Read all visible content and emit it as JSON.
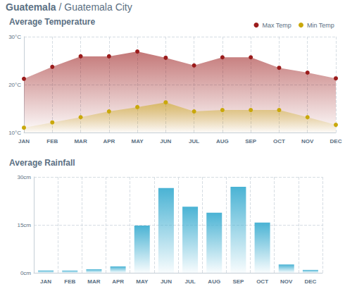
{
  "header": {
    "country": "Guatemala",
    "separator": "/",
    "city": "Guatemala City"
  },
  "chart_data": [
    {
      "type": "line",
      "title": "Average Temperature",
      "categories": [
        "JAN",
        "FEB",
        "MAR",
        "APR",
        "MAY",
        "JUN",
        "JUL",
        "AUG",
        "SEP",
        "OCT",
        "NOV",
        "DEC"
      ],
      "series": [
        {
          "name": "Max Temp",
          "color": "#9b1c1c",
          "values": [
            21.2,
            23.7,
            25.9,
            25.9,
            26.9,
            25.6,
            24.0,
            25.7,
            25.7,
            23.5,
            22.5,
            21.3
          ]
        },
        {
          "name": "Min Temp",
          "color": "#c9a80b",
          "values": [
            11.0,
            12.1,
            13.2,
            14.4,
            15.3,
            16.3,
            14.4,
            14.7,
            14.7,
            14.7,
            13.2,
            11.6
          ]
        }
      ],
      "ylim": [
        10,
        30
      ],
      "yticks": [
        {
          "value": 10,
          "label": "10°C"
        },
        {
          "value": 20,
          "label": "20°C"
        },
        {
          "value": 30,
          "label": "30°C"
        }
      ],
      "grid": true,
      "legend": "upper-right",
      "marker": "circle"
    },
    {
      "type": "bar",
      "title": "Average Rainfall",
      "categories": [
        "JAN",
        "FEB",
        "MAR",
        "APR",
        "MAY",
        "JUN",
        "JUL",
        "AUG",
        "SEP",
        "OCT",
        "NOV",
        "DEC"
      ],
      "values": [
        0.7,
        0.7,
        1.1,
        2.0,
        14.8,
        26.5,
        20.7,
        18.8,
        26.9,
        15.7,
        2.6,
        0.9
      ],
      "color": "#4ab3d4",
      "ylim": [
        0,
        30
      ],
      "yticks": [
        {
          "value": 0,
          "label": "0cm"
        },
        {
          "value": 15,
          "label": "15cm"
        },
        {
          "value": 30,
          "label": "30cm"
        }
      ],
      "grid": true
    }
  ]
}
